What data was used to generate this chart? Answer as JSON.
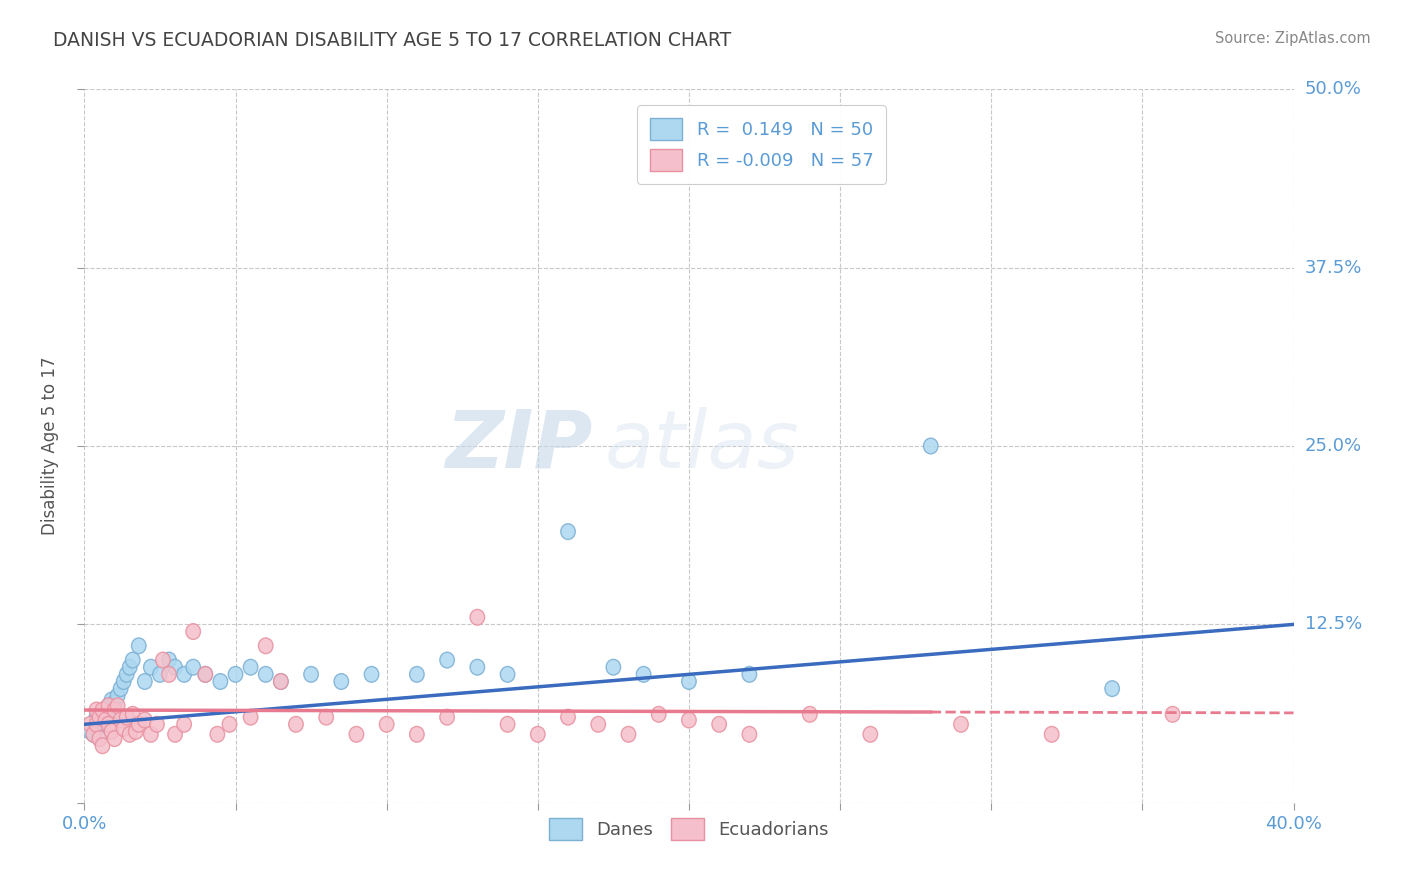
{
  "title": "DANISH VS ECUADORIAN DISABILITY AGE 5 TO 17 CORRELATION CHART",
  "source": "Source: ZipAtlas.com",
  "ylabel": "Disability Age 5 to 17",
  "xlim": [
    0.0,
    0.4
  ],
  "ylim": [
    0.0,
    0.5
  ],
  "xticks": [
    0.0,
    0.05,
    0.1,
    0.15,
    0.2,
    0.25,
    0.3,
    0.35,
    0.4
  ],
  "xticklabels": [
    "0.0%",
    "",
    "",
    "",
    "",
    "",
    "",
    "",
    "40.0%"
  ],
  "yticks": [
    0.0,
    0.125,
    0.25,
    0.375,
    0.5
  ],
  "yticklabels": [
    "",
    "12.5%",
    "25.0%",
    "37.5%",
    "50.0%"
  ],
  "danes_color": "#add8f0",
  "danes_edge_color": "#7bafd4",
  "ecuadorians_color": "#f5c0cb",
  "ecuadorians_edge_color": "#e8909f",
  "trend_danes_color": "#3a6bbf",
  "trend_ecu_color": "#e87a8f",
  "danes_R": 0.149,
  "danes_N": 50,
  "ecu_R": -0.009,
  "ecu_N": 57,
  "background_color": "#ffffff",
  "grid_color": "#c8c8c8",
  "title_color": "#444444",
  "axis_label_color": "#5b9bd5",
  "watermark_zip": "ZIP",
  "watermark_atlas": "atlas",
  "danes_x": [
    0.002,
    0.003,
    0.004,
    0.004,
    0.005,
    0.005,
    0.006,
    0.006,
    0.007,
    0.007,
    0.008,
    0.008,
    0.009,
    0.009,
    0.01,
    0.01,
    0.011,
    0.012,
    0.013,
    0.014,
    0.015,
    0.016,
    0.018,
    0.02,
    0.022,
    0.025,
    0.028,
    0.03,
    0.033,
    0.036,
    0.04,
    0.045,
    0.05,
    0.055,
    0.06,
    0.065,
    0.075,
    0.085,
    0.095,
    0.11,
    0.12,
    0.13,
    0.14,
    0.16,
    0.175,
    0.185,
    0.2,
    0.22,
    0.28,
    0.34
  ],
  "danes_y": [
    0.05,
    0.048,
    0.052,
    0.06,
    0.055,
    0.045,
    0.062,
    0.058,
    0.065,
    0.055,
    0.068,
    0.06,
    0.072,
    0.055,
    0.07,
    0.065,
    0.075,
    0.08,
    0.085,
    0.09,
    0.095,
    0.1,
    0.11,
    0.085,
    0.095,
    0.09,
    0.1,
    0.095,
    0.09,
    0.095,
    0.09,
    0.085,
    0.09,
    0.095,
    0.09,
    0.085,
    0.09,
    0.085,
    0.09,
    0.09,
    0.1,
    0.095,
    0.09,
    0.19,
    0.095,
    0.09,
    0.085,
    0.09,
    0.25,
    0.08
  ],
  "ecu_x": [
    0.002,
    0.003,
    0.004,
    0.004,
    0.005,
    0.005,
    0.006,
    0.006,
    0.007,
    0.008,
    0.008,
    0.009,
    0.01,
    0.01,
    0.011,
    0.012,
    0.013,
    0.014,
    0.015,
    0.016,
    0.017,
    0.018,
    0.02,
    0.022,
    0.024,
    0.026,
    0.028,
    0.03,
    0.033,
    0.036,
    0.04,
    0.044,
    0.048,
    0.055,
    0.06,
    0.065,
    0.07,
    0.08,
    0.09,
    0.1,
    0.11,
    0.12,
    0.13,
    0.14,
    0.15,
    0.16,
    0.17,
    0.18,
    0.19,
    0.2,
    0.21,
    0.22,
    0.24,
    0.26,
    0.29,
    0.32,
    0.36
  ],
  "ecu_y": [
    0.055,
    0.048,
    0.055,
    0.065,
    0.06,
    0.045,
    0.065,
    0.04,
    0.058,
    0.068,
    0.055,
    0.05,
    0.065,
    0.045,
    0.068,
    0.058,
    0.052,
    0.06,
    0.048,
    0.062,
    0.05,
    0.055,
    0.058,
    0.048,
    0.055,
    0.1,
    0.09,
    0.048,
    0.055,
    0.12,
    0.09,
    0.048,
    0.055,
    0.06,
    0.11,
    0.085,
    0.055,
    0.06,
    0.048,
    0.055,
    0.048,
    0.06,
    0.13,
    0.055,
    0.048,
    0.06,
    0.055,
    0.048,
    0.062,
    0.058,
    0.055,
    0.048,
    0.062,
    0.048,
    0.055,
    0.048,
    0.062
  ]
}
